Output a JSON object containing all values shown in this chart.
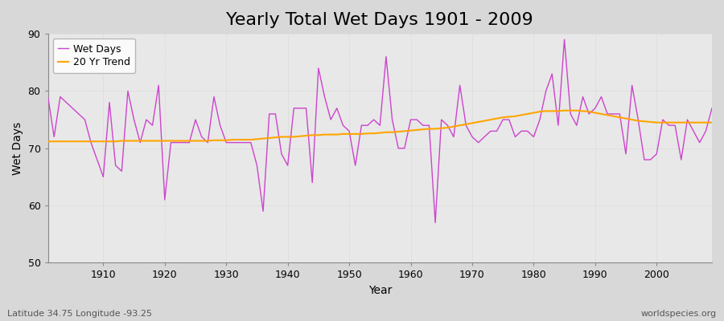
{
  "title": "Yearly Total Wet Days 1901 - 2009",
  "xlabel": "Year",
  "ylabel": "Wet Days",
  "start_year": 1901,
  "end_year": 2009,
  "xlim": [
    1901,
    2009
  ],
  "ylim": [
    50,
    90
  ],
  "yticks": [
    50,
    60,
    70,
    80,
    90
  ],
  "xticks": [
    1910,
    1920,
    1930,
    1940,
    1950,
    1960,
    1970,
    1980,
    1990,
    2000
  ],
  "wet_days_color": "#CC44CC",
  "trend_color": "#FFA500",
  "figure_bg_color": "#D8D8D8",
  "plot_bg_color": "#E8E8E8",
  "grid_color": "#C8C8C8",
  "wet_days": [
    79,
    72,
    79,
    78,
    77,
    76,
    75,
    71,
    68,
    65,
    78,
    67,
    66,
    80,
    75,
    71,
    75,
    74,
    81,
    61,
    71,
    71,
    71,
    71,
    75,
    72,
    71,
    79,
    74,
    71,
    71,
    71,
    71,
    71,
    67,
    59,
    76,
    76,
    69,
    67,
    77,
    77,
    77,
    64,
    84,
    79,
    75,
    77,
    74,
    73,
    67,
    74,
    74,
    75,
    74,
    86,
    75,
    70,
    70,
    75,
    75,
    74,
    74,
    57,
    75,
    74,
    72,
    81,
    74,
    72,
    71,
    72,
    73,
    73,
    75,
    75,
    72,
    73,
    73,
    72,
    75,
    80,
    83,
    74,
    89,
    76,
    74,
    79,
    76,
    77,
    79,
    76,
    76,
    76,
    69,
    81,
    75,
    68,
    68,
    69,
    75,
    74,
    74,
    68,
    75,
    73,
    71,
    73,
    77
  ],
  "trend": [
    71.2,
    71.2,
    71.2,
    71.2,
    71.2,
    71.2,
    71.2,
    71.2,
    71.2,
    71.2,
    71.2,
    71.2,
    71.3,
    71.3,
    71.3,
    71.3,
    71.3,
    71.3,
    71.3,
    71.3,
    71.3,
    71.3,
    71.3,
    71.3,
    71.3,
    71.3,
    71.3,
    71.4,
    71.4,
    71.4,
    71.5,
    71.5,
    71.5,
    71.5,
    71.6,
    71.7,
    71.8,
    71.9,
    72.0,
    72.0,
    72.0,
    72.1,
    72.2,
    72.3,
    72.3,
    72.4,
    72.4,
    72.4,
    72.5,
    72.5,
    72.5,
    72.5,
    72.6,
    72.6,
    72.7,
    72.8,
    72.8,
    72.9,
    73.0,
    73.1,
    73.2,
    73.3,
    73.4,
    73.4,
    73.5,
    73.6,
    73.8,
    74.0,
    74.2,
    74.4,
    74.6,
    74.8,
    75.0,
    75.2,
    75.4,
    75.5,
    75.6,
    75.8,
    76.0,
    76.2,
    76.4,
    76.5,
    76.5,
    76.5,
    76.6,
    76.6,
    76.6,
    76.5,
    76.4,
    76.2,
    76.0,
    75.8,
    75.6,
    75.4,
    75.2,
    75.0,
    74.8,
    74.7,
    74.6,
    74.5,
    74.5,
    74.5,
    74.5,
    74.5,
    74.5,
    74.5,
    74.5,
    74.5,
    74.5
  ],
  "footer_left": "Latitude 34.75 Longitude -93.25",
  "footer_right": "worldspecies.org",
  "legend_wet": "Wet Days",
  "legend_trend": "20 Yr Trend",
  "title_fontsize": 16,
  "axis_label_fontsize": 10,
  "tick_label_fontsize": 9,
  "legend_fontsize": 9,
  "footer_fontsize": 8
}
